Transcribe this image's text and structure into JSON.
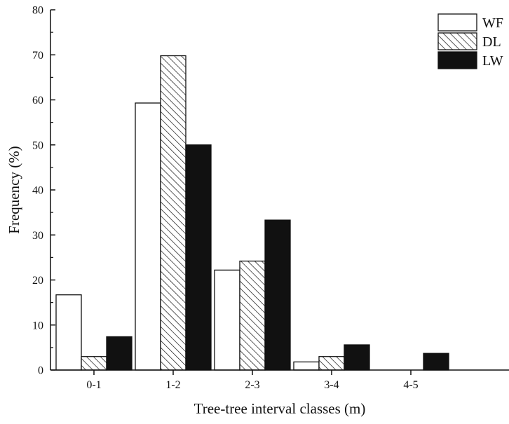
{
  "chart_data": {
    "type": "bar",
    "categories": [
      "0-1",
      "1-2",
      "2-3",
      "3-4",
      "4-5"
    ],
    "series": [
      {
        "name": "WF",
        "values": [
          16.7,
          59.3,
          22.2,
          1.8,
          0
        ],
        "style": "white"
      },
      {
        "name": "DL",
        "values": [
          3.0,
          69.8,
          24.2,
          3.0,
          0
        ],
        "style": "hatched"
      },
      {
        "name": "LW",
        "values": [
          7.4,
          50.0,
          33.3,
          5.6,
          3.7
        ],
        "style": "black"
      }
    ],
    "xlabel": "Tree-tree interval classes (m)",
    "ylabel": "Frequency (%)",
    "ylim": [
      0,
      80
    ],
    "yticks": [
      "0",
      "10",
      "20",
      "30",
      "40",
      "50",
      "60",
      "70",
      "80"
    ],
    "grid": false,
    "legend_position": "top-right",
    "colors": {
      "ink": "#111111",
      "background": "#ffffff"
    }
  }
}
